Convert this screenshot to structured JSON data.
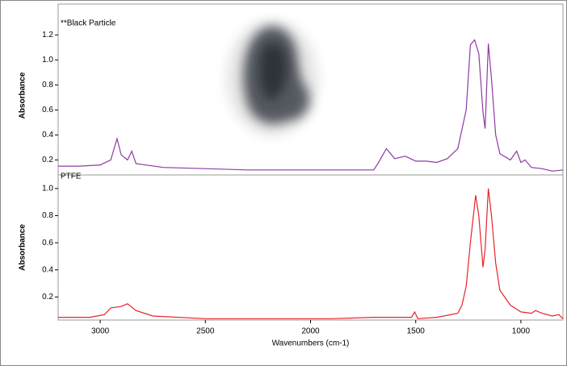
{
  "chart_data": [
    {
      "type": "line",
      "ylabel": "Absorbance",
      "xlim": [
        3200,
        800
      ],
      "ylim": [
        0.08,
        1.35
      ],
      "yticks": [
        0.2,
        0.4,
        0.6,
        0.8,
        {
          "value": 1,
          "label": "1.0"
        },
        1.2
      ],
      "x": [
        3200,
        3100,
        3000,
        2950,
        2920,
        2900,
        2870,
        2850,
        2830,
        2700,
        2500,
        2300,
        2100,
        1900,
        1700,
        1680,
        1640,
        1600,
        1550,
        1500,
        1450,
        1400,
        1350,
        1300,
        1260,
        1240,
        1220,
        1200,
        1180,
        1170,
        1155,
        1140,
        1120,
        1100,
        1050,
        1020,
        1000,
        980,
        950,
        900,
        850,
        800
      ],
      "series": [
        {
          "name": "**Black Particle",
          "color": "#8e3aa3",
          "values": [
            0.15,
            0.15,
            0.16,
            0.2,
            0.37,
            0.24,
            0.2,
            0.27,
            0.17,
            0.14,
            0.13,
            0.12,
            0.12,
            0.12,
            0.12,
            0.17,
            0.29,
            0.21,
            0.23,
            0.19,
            0.19,
            0.18,
            0.21,
            0.29,
            0.6,
            1.12,
            1.16,
            1.05,
            0.58,
            0.45,
            1.13,
            0.85,
            0.4,
            0.25,
            0.2,
            0.27,
            0.18,
            0.2,
            0.14,
            0.13,
            0.11,
            0.12
          ]
        }
      ]
    },
    {
      "type": "line",
      "ylabel": "Absorbance",
      "xlabel": "Wavenumbers (cm-1)",
      "xlim": [
        3200,
        800
      ],
      "ylim": [
        0.03,
        1.1
      ],
      "xticks": [
        3000,
        2500,
        2000,
        1500,
        1000
      ],
      "yticks": [
        0.2,
        0.4,
        0.6,
        0.8,
        {
          "value": 1,
          "label": "1.0"
        }
      ],
      "x": [
        3200,
        3050,
        2980,
        2950,
        2900,
        2870,
        2830,
        2750,
        2500,
        2200,
        1900,
        1700,
        1600,
        1520,
        1505,
        1490,
        1400,
        1300,
        1280,
        1260,
        1240,
        1215,
        1200,
        1180,
        1170,
        1155,
        1140,
        1120,
        1100,
        1050,
        1000,
        950,
        930,
        900,
        850,
        820,
        800
      ],
      "series": [
        {
          "name": "PTFE",
          "color": "#e8232a",
          "values": [
            0.05,
            0.05,
            0.07,
            0.12,
            0.13,
            0.15,
            0.1,
            0.06,
            0.04,
            0.04,
            0.04,
            0.05,
            0.05,
            0.05,
            0.09,
            0.04,
            0.05,
            0.08,
            0.14,
            0.28,
            0.6,
            0.95,
            0.8,
            0.42,
            0.55,
            1.0,
            0.8,
            0.45,
            0.25,
            0.14,
            0.09,
            0.08,
            0.1,
            0.08,
            0.06,
            0.07,
            0.04
          ]
        }
      ]
    }
  ]
}
